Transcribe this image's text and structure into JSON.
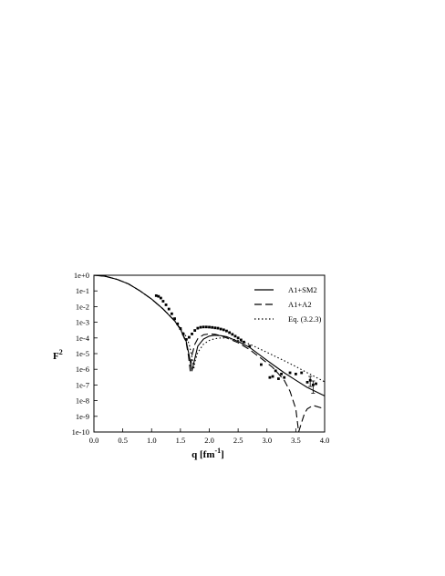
{
  "chart_data": {
    "type": "line",
    "xlabel": "q [fm",
    "xlabel_sup": "-1",
    "xlabel_close": "]",
    "ylabel": "F",
    "ylabel_sup": "2",
    "xlim": [
      0.0,
      4.0
    ],
    "ylim_log10": [
      -10,
      0
    ],
    "y_scale": "log",
    "x_ticks": [
      "0.0",
      "0.5",
      "1.0",
      "1.5",
      "2.0",
      "2.5",
      "3.0",
      "3.5",
      "4.0"
    ],
    "y_ticks": [
      "1e-10",
      "1e-9",
      "1e-8",
      "1e-7",
      "1e-6",
      "1e-5",
      "1e-4",
      "1e-3",
      "1e-2",
      "1e-1",
      "1e+0"
    ],
    "legend_position": "top-right",
    "grid": false,
    "series": [
      {
        "name": "A1+SM2",
        "style": "solid",
        "x": [
          0.0,
          0.2,
          0.4,
          0.6,
          0.8,
          1.0,
          1.2,
          1.4,
          1.5,
          1.6,
          1.65,
          1.7,
          1.75,
          1.8,
          1.9,
          2.0,
          2.1,
          2.2,
          2.3,
          2.5,
          2.7,
          2.9,
          3.1,
          3.3,
          3.5,
          3.7,
          4.0
        ],
        "y": [
          1.0,
          0.85,
          0.55,
          0.28,
          0.1,
          0.03,
          0.007,
          0.0012,
          0.00035,
          6e-05,
          8e-06,
          8e-07,
          5e-06,
          3e-05,
          8.5e-05,
          0.00013,
          0.00015,
          0.00014,
          0.00012,
          6e-05,
          2.5e-05,
          7e-06,
          2e-06,
          6e-07,
          2e-07,
          7e-08,
          2e-08
        ]
      },
      {
        "name": "A1+A2",
        "style": "dashed",
        "x": [
          0.0,
          0.2,
          0.4,
          0.6,
          0.8,
          1.0,
          1.2,
          1.4,
          1.5,
          1.6,
          1.64,
          1.67,
          1.7,
          1.75,
          1.8,
          1.9,
          2.0,
          2.1,
          2.2,
          2.3,
          2.5,
          2.7,
          2.9,
          3.1,
          3.3,
          3.4,
          3.5,
          3.55,
          3.6,
          3.65,
          3.7,
          3.8,
          4.0
        ],
        "y": [
          1.0,
          0.85,
          0.55,
          0.28,
          0.1,
          0.03,
          0.007,
          0.0012,
          0.00035,
          5e-05,
          7e-06,
          8e-07,
          8e-06,
          4e-05,
          9e-05,
          0.00016,
          0.00018,
          0.00017,
          0.00014,
          0.0001,
          5e-05,
          1.8e-05,
          5e-06,
          1.3e-06,
          2e-07,
          4e-08,
          3e-09,
          1e-10,
          4e-10,
          1.5e-09,
          3e-09,
          5e-09,
          3e-09
        ]
      },
      {
        "name": "Eq. (3.2.3)",
        "style": "dotted",
        "x": [
          0.0,
          0.2,
          0.4,
          0.6,
          0.8,
          1.0,
          1.2,
          1.4,
          1.5,
          1.6,
          1.65,
          1.7,
          1.73,
          1.76,
          1.8,
          1.9,
          2.0,
          2.1,
          2.2,
          2.3,
          2.5,
          2.7,
          2.9,
          3.1,
          3.3,
          3.5,
          3.7,
          4.0
        ],
        "y": [
          1.0,
          0.85,
          0.55,
          0.28,
          0.1,
          0.03,
          0.007,
          0.0013,
          0.0004,
          0.00012,
          4e-05,
          6e-06,
          1e-06,
          4e-06,
          1.2e-05,
          4e-05,
          7e-05,
          9e-05,
          0.0001,
          0.0001,
          7e-05,
          4e-05,
          1.8e-05,
          8e-06,
          3.5e-06,
          1.5e-06,
          6e-07,
          1.6e-07
        ]
      },
      {
        "name": "",
        "style": "markers",
        "x": [
          1.08,
          1.12,
          1.16,
          1.2,
          1.25,
          1.3,
          1.35,
          1.4,
          1.45,
          1.5,
          1.55,
          1.6,
          1.65,
          1.7,
          1.75,
          1.8,
          1.85,
          1.9,
          1.95,
          2.0,
          2.05,
          2.1,
          2.15,
          2.2,
          2.25,
          2.3,
          2.35,
          2.4,
          2.45,
          2.5,
          2.55,
          2.6,
          2.7,
          2.9,
          3.05,
          3.1,
          3.15,
          3.2,
          3.25,
          3.3,
          3.4,
          3.5,
          3.6,
          3.7,
          3.75,
          3.8,
          3.85
        ],
        "y": [
          0.05,
          0.045,
          0.035,
          0.022,
          0.013,
          0.007,
          0.0035,
          0.0017,
          0.0008,
          0.0004,
          0.00018,
          8e-05,
          0.00011,
          0.00018,
          0.0003,
          0.00042,
          0.00048,
          0.0005,
          0.0005,
          0.00049,
          0.00047,
          0.00044,
          0.00042,
          0.00037,
          0.00033,
          0.00028,
          0.00022,
          0.00017,
          0.00013,
          0.0001,
          7.5e-05,
          5.5e-05,
          3e-05,
          2e-06,
          3e-07,
          3.5e-07,
          8e-07,
          2.5e-07,
          5e-07,
          3e-07,
          6e-07,
          5e-07,
          6e-07,
          1.5e-07,
          2e-07,
          1e-07,
          1.2e-07
        ],
        "error_bars": [
          {
            "x": 3.75,
            "y": 2e-07,
            "low": 8e-08,
            "high": 3.5e-07
          },
          {
            "x": 3.8,
            "y": 1e-07,
            "low": 3e-08,
            "high": 1.8e-07
          }
        ]
      }
    ]
  }
}
